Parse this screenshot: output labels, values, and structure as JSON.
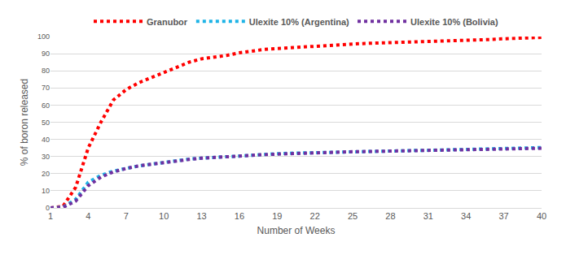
{
  "chart_data": {
    "type": "line",
    "x_label": "Number of Weeks",
    "y_label": "% of boron released",
    "x": [
      1,
      2,
      3,
      4,
      5,
      6,
      7,
      8,
      9,
      10,
      11,
      12,
      13,
      14,
      15,
      16,
      17,
      18,
      19,
      20,
      21,
      22,
      23,
      24,
      25,
      26,
      27,
      28,
      29,
      30,
      31,
      32,
      33,
      34,
      35,
      36,
      37,
      38,
      39,
      40
    ],
    "series": [
      {
        "name": "Granubor",
        "color": "#ff0000",
        "line_style": "dotted",
        "values": [
          0,
          1,
          12,
          35,
          50,
          63,
          69,
          73,
          76,
          79,
          82,
          85,
          87,
          88,
          89,
          90.5,
          91.5,
          92.5,
          93,
          93.5,
          94,
          94.5,
          95,
          95.3,
          95.6,
          96,
          96.2,
          96.4,
          96.6,
          96.8,
          97,
          97.2,
          97.5,
          97.7,
          98,
          98.3,
          98.7,
          99,
          99.3,
          99.5
        ]
      },
      {
        "name": "Ulexite 10% (Argentina)",
        "color": "#1fb4e6",
        "line_style": "dotted",
        "values": [
          0,
          0.5,
          5,
          15,
          19,
          21.5,
          23,
          24.5,
          25.5,
          26.5,
          27.5,
          28.5,
          29,
          29.5,
          30,
          30.5,
          31,
          31.3,
          31.6,
          31.9,
          32.1,
          32.3,
          32.5,
          32.7,
          32.9,
          33,
          33.1,
          33.3,
          33.4,
          33.5,
          33.6,
          33.8,
          33.9,
          34,
          34.2,
          34.4,
          34.6,
          34.8,
          35,
          35.2
        ]
      },
      {
        "name": "Ulexite 10% (Bolivia)",
        "color": "#7030a0",
        "line_style": "dotted",
        "values": [
          0,
          0.3,
          4,
          13,
          18,
          21,
          23,
          24.5,
          25.5,
          26.5,
          27.5,
          28.3,
          29,
          29.5,
          30,
          30.4,
          30.8,
          31.1,
          31.4,
          31.7,
          32,
          32.2,
          32.4,
          32.6,
          32.8,
          32.9,
          33,
          33.2,
          33.3,
          33.4,
          33.5,
          33.6,
          33.7,
          33.8,
          34,
          34.1,
          34.3,
          34.5,
          34.7,
          34.8
        ]
      }
    ],
    "xlim": [
      1,
      40
    ],
    "xticks": [
      1,
      4,
      7,
      10,
      13,
      16,
      19,
      22,
      25,
      28,
      31,
      34,
      37,
      40
    ],
    "ylim": [
      0,
      100
    ],
    "yticks": [
      0,
      10,
      20,
      30,
      40,
      50,
      60,
      70,
      80,
      90,
      100
    ],
    "grid": true,
    "legend": "top"
  }
}
